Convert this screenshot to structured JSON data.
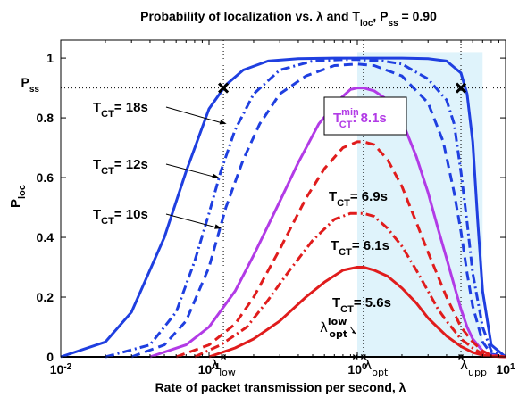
{
  "chart_data": {
    "type": "line",
    "title": {
      "main": "Probability of localization vs. λ and T",
      "sub_loc": "loc",
      "mid": ", P",
      "sub_ss": "ss",
      "tail": " = 0.90"
    },
    "ylabel": {
      "main": "P",
      "sub": "loc"
    },
    "xlabel": "Rate of packet transmission per second, λ",
    "x_scale": "log",
    "xlim": [
      0.01,
      10
    ],
    "ylim": [
      0,
      1.06
    ],
    "x_ticks": [
      {
        "base": "10",
        "exp": "-2",
        "value": 0.01
      },
      {
        "base": "10",
        "exp": "-1",
        "value": 0.1
      },
      {
        "base": "10",
        "exp": "0",
        "value": 1
      },
      {
        "base": "10",
        "exp": "1",
        "value": 10
      }
    ],
    "y_ticks": [
      {
        "label": "0",
        "value": 0
      },
      {
        "label": "0.2",
        "value": 0.2
      },
      {
        "label": "0.4",
        "value": 0.4
      },
      {
        "label": "0.6",
        "value": 0.6
      },
      {
        "label": "0.8",
        "value": 0.8
      },
      {
        "label": "1",
        "value": 1
      }
    ],
    "pss_value": 0.9,
    "pss_label": {
      "main": "P",
      "sub": "ss"
    },
    "shaded_region": {
      "from": 1.0,
      "to": 7.0,
      "color": "#dff3fb"
    },
    "vertical_markers": [
      {
        "id": "low",
        "x": 0.125,
        "label_main": "λ",
        "label_sub": "low"
      },
      {
        "id": "opt",
        "x": 1.1,
        "label_main": "λ",
        "label_sub": "opt"
      },
      {
        "id": "upp",
        "x": 5.0,
        "label_main": "λ",
        "label_sub": "upp"
      },
      {
        "id": "optlow",
        "x": 0.97,
        "label_main": "λ",
        "label_sub": "opt",
        "label_sup": "low"
      }
    ],
    "cross_markers": [
      {
        "x": 0.125,
        "y": 0.9
      },
      {
        "x": 5.0,
        "y": 0.9
      }
    ],
    "series": [
      {
        "name": "T_CT = 18s",
        "color": "#1f3fe0",
        "dash": "solid",
        "x": [
          0.01,
          0.02,
          0.03,
          0.05,
          0.07,
          0.1,
          0.13,
          0.17,
          0.25,
          0.4,
          0.7,
          1,
          1.5,
          2,
          3,
          4,
          5,
          5.5,
          6,
          6.5,
          7,
          8,
          10
        ],
        "y": [
          0.0,
          0.05,
          0.15,
          0.4,
          0.62,
          0.83,
          0.91,
          0.96,
          0.99,
          0.998,
          1.0,
          1.0,
          1.0,
          1.0,
          0.998,
          0.99,
          0.95,
          0.88,
          0.72,
          0.45,
          0.22,
          0.04,
          0.0
        ]
      },
      {
        "name": "T_CT = 12s",
        "color": "#1f3fe0",
        "dash": "dashdot",
        "x": [
          0.02,
          0.04,
          0.06,
          0.08,
          0.1,
          0.12,
          0.15,
          0.2,
          0.3,
          0.5,
          0.8,
          1,
          1.5,
          2,
          3,
          4,
          4.5,
          5,
          5.5,
          6,
          7,
          8,
          10
        ],
        "y": [
          0.0,
          0.04,
          0.15,
          0.32,
          0.48,
          0.62,
          0.76,
          0.88,
          0.96,
          0.99,
          0.995,
          0.995,
          0.99,
          0.98,
          0.93,
          0.86,
          0.78,
          0.62,
          0.45,
          0.28,
          0.1,
          0.02,
          0.0
        ]
      },
      {
        "name": "T_CT = 10s",
        "color": "#1f3fe0",
        "dash": "dashed",
        "x": [
          0.03,
          0.05,
          0.07,
          0.1,
          0.13,
          0.17,
          0.22,
          0.3,
          0.45,
          0.7,
          1,
          1.3,
          2,
          3,
          3.8,
          4.5,
          5,
          5.5,
          6,
          7,
          8,
          10
        ],
        "y": [
          0.0,
          0.04,
          0.12,
          0.3,
          0.5,
          0.66,
          0.78,
          0.88,
          0.94,
          0.975,
          0.98,
          0.975,
          0.94,
          0.85,
          0.72,
          0.55,
          0.42,
          0.28,
          0.17,
          0.05,
          0.01,
          0.0
        ]
      },
      {
        "name": "T_CT^min = 8.1s",
        "color": "#b23be6",
        "dash": "solid",
        "x": [
          0.04,
          0.07,
          0.1,
          0.15,
          0.2,
          0.3,
          0.4,
          0.55,
          0.75,
          0.9,
          1,
          1.1,
          1.3,
          1.6,
          2,
          2.5,
          3,
          3.5,
          4,
          4.5,
          5,
          5.5,
          6,
          7,
          8,
          10
        ],
        "y": [
          0.0,
          0.04,
          0.1,
          0.22,
          0.34,
          0.52,
          0.65,
          0.78,
          0.86,
          0.895,
          0.9,
          0.9,
          0.89,
          0.86,
          0.79,
          0.67,
          0.55,
          0.43,
          0.33,
          0.24,
          0.16,
          0.1,
          0.06,
          0.02,
          0.005,
          0.0
        ]
      },
      {
        "name": "T_CT = 6.9s",
        "color": "#e01c1c",
        "dash": "dashed",
        "x": [
          0.06,
          0.1,
          0.15,
          0.2,
          0.3,
          0.45,
          0.6,
          0.8,
          1,
          1.1,
          1.3,
          1.6,
          2,
          2.5,
          3,
          3.5,
          4,
          5,
          6,
          7,
          8,
          10
        ],
        "y": [
          0.0,
          0.04,
          0.11,
          0.2,
          0.36,
          0.53,
          0.63,
          0.7,
          0.72,
          0.72,
          0.71,
          0.66,
          0.57,
          0.45,
          0.35,
          0.27,
          0.2,
          0.1,
          0.05,
          0.02,
          0.005,
          0.0
        ]
      },
      {
        "name": "T_CT = 6.1s",
        "color": "#e01c1c",
        "dash": "dashdot",
        "x": [
          0.08,
          0.12,
          0.18,
          0.25,
          0.35,
          0.5,
          0.7,
          0.9,
          1.1,
          1.3,
          1.6,
          2,
          2.5,
          3,
          3.5,
          4,
          5,
          6,
          7,
          8,
          10
        ],
        "y": [
          0.0,
          0.04,
          0.1,
          0.19,
          0.29,
          0.39,
          0.46,
          0.48,
          0.48,
          0.47,
          0.43,
          0.37,
          0.29,
          0.22,
          0.16,
          0.12,
          0.06,
          0.03,
          0.01,
          0.003,
          0.0
        ]
      },
      {
        "name": "T_CT = 5.6s",
        "color": "#e01c1c",
        "dash": "solid",
        "x": [
          0.1,
          0.15,
          0.2,
          0.3,
          0.45,
          0.6,
          0.8,
          1,
          1.1,
          1.3,
          1.6,
          2,
          2.5,
          3,
          4,
          5,
          6,
          7,
          8,
          10
        ],
        "y": [
          0.0,
          0.03,
          0.06,
          0.12,
          0.2,
          0.25,
          0.29,
          0.3,
          0.3,
          0.29,
          0.27,
          0.23,
          0.18,
          0.13,
          0.07,
          0.035,
          0.015,
          0.006,
          0.002,
          0.0
        ]
      }
    ],
    "annotations": [
      {
        "id": "t18",
        "main": "T",
        "sub": "CT",
        "rest": "= 18s",
        "color": "#000000",
        "arrow_to": {
          "x": 0.135,
          "y": 0.78
        }
      },
      {
        "id": "t12",
        "main": "T",
        "sub": "CT",
        "rest": "= 12s",
        "color": "#000000",
        "arrow_to": {
          "x": 0.12,
          "y": 0.6
        }
      },
      {
        "id": "t10",
        "main": "T",
        "sub": "CT",
        "rest": "= 10s",
        "color": "#000000",
        "arrow_to": {
          "x": 0.125,
          "y": 0.43
        }
      },
      {
        "id": "tmin",
        "main": "T",
        "sub": "CT",
        "sup": "min",
        "rest": ": 8.1s",
        "color": "#b23be6",
        "boxed": true
      },
      {
        "id": "t69",
        "main": "T",
        "sub": "CT",
        "rest": "= 6.9s",
        "color": "#000000"
      },
      {
        "id": "t61",
        "main": "T",
        "sub": "CT",
        "rest": "= 6.1s",
        "color": "#000000"
      },
      {
        "id": "t56",
        "main": "T",
        "sub": "CT",
        "rest": "= 5.6s",
        "color": "#000000"
      }
    ]
  }
}
